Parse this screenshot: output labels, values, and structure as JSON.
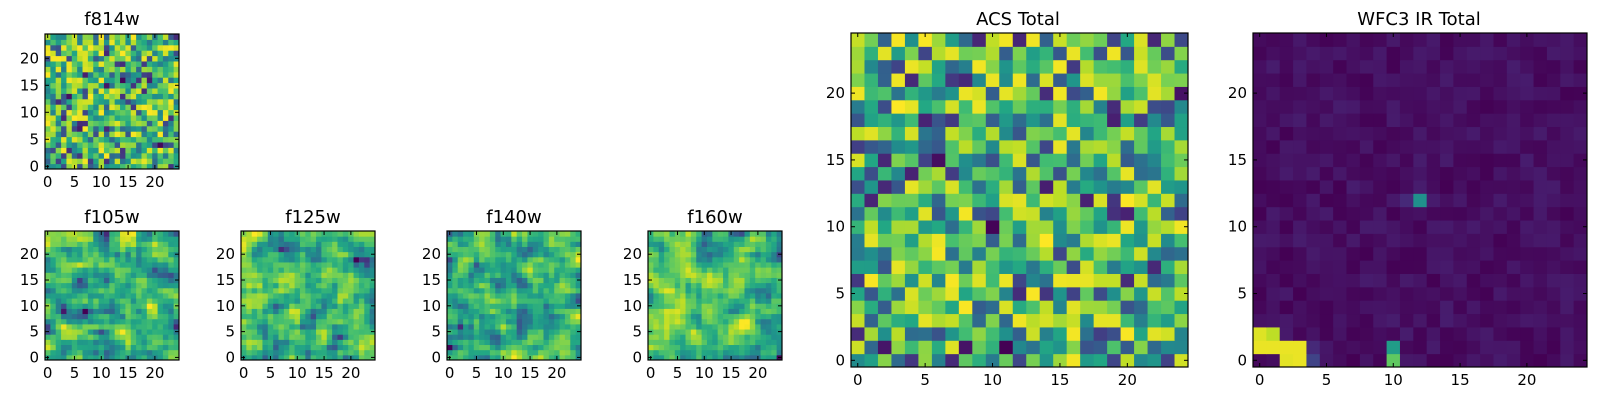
{
  "chart_data": [
    {
      "type": "heatmap",
      "title": "f814w",
      "x_ticks": [
        0,
        5,
        10,
        15,
        20
      ],
      "y_ticks": [
        0,
        5,
        10,
        15,
        20
      ],
      "xlim": [
        -0.5,
        24.5
      ],
      "ylim": [
        -0.5,
        24.5
      ],
      "grid_size": [
        25,
        25
      ],
      "pattern": "pixel noise",
      "colormap": "viridis",
      "value_range": [
        0,
        1
      ],
      "seed": 11,
      "blocky": false,
      "bright": 0.65
    },
    {
      "type": "heatmap",
      "title": "f105w",
      "x_ticks": [
        0,
        5,
        10,
        15,
        20
      ],
      "y_ticks": [
        0,
        5,
        10,
        15,
        20
      ],
      "xlim": [
        -0.5,
        24.5
      ],
      "ylim": [
        -0.5,
        24.5
      ],
      "grid_size": [
        25,
        25
      ],
      "pattern": "smooth noise",
      "colormap": "viridis",
      "value_range": [
        0,
        1
      ],
      "seed": 23,
      "blocky": false,
      "bright": 0.7
    },
    {
      "type": "heatmap",
      "title": "f125w",
      "x_ticks": [
        0,
        5,
        10,
        15,
        20
      ],
      "y_ticks": [
        0,
        5,
        10,
        15,
        20
      ],
      "xlim": [
        -0.5,
        24.5
      ],
      "ylim": [
        -0.5,
        24.5
      ],
      "grid_size": [
        25,
        25
      ],
      "pattern": "smooth noise",
      "colormap": "viridis",
      "value_range": [
        0,
        1
      ],
      "seed": 37,
      "blocky": false,
      "bright": 0.72
    },
    {
      "type": "heatmap",
      "title": "f140w",
      "x_ticks": [
        0,
        5,
        10,
        15,
        20
      ],
      "y_ticks": [
        0,
        5,
        10,
        15,
        20
      ],
      "xlim": [
        -0.5,
        24.5
      ],
      "ylim": [
        -0.5,
        24.5
      ],
      "grid_size": [
        25,
        25
      ],
      "pattern": "smooth noise",
      "colormap": "viridis",
      "value_range": [
        0,
        1
      ],
      "seed": 41,
      "blocky": false,
      "bright": 0.72
    },
    {
      "type": "heatmap",
      "title": "f160w",
      "x_ticks": [
        0,
        5,
        10,
        15,
        20
      ],
      "y_ticks": [
        0,
        5,
        10,
        15,
        20
      ],
      "xlim": [
        -0.5,
        24.5
      ],
      "ylim": [
        -0.5,
        24.5
      ],
      "grid_size": [
        25,
        25
      ],
      "pattern": "smooth noise",
      "colormap": "viridis",
      "value_range": [
        0,
        1
      ],
      "seed": 53,
      "blocky": false,
      "bright": 0.72
    },
    {
      "type": "heatmap",
      "title": "ACS Total",
      "x_ticks": [
        0,
        5,
        10,
        15,
        20
      ],
      "y_ticks": [
        0,
        5,
        10,
        15,
        20
      ],
      "xlim": [
        -0.5,
        24.5
      ],
      "ylim": [
        -0.5,
        24.5
      ],
      "grid_size": [
        25,
        25
      ],
      "pattern": "pixel noise",
      "colormap": "viridis",
      "value_range": [
        0,
        1
      ],
      "seed": 67,
      "blocky": false,
      "bright": 0.68
    },
    {
      "type": "heatmap",
      "title": "WFC3 IR Total",
      "x_ticks": [
        0,
        5,
        10,
        15,
        20
      ],
      "y_ticks": [
        0,
        5,
        10,
        15,
        20
      ],
      "xlim": [
        -0.5,
        24.5
      ],
      "ylim": [
        -0.5,
        24.5
      ],
      "grid_size": [
        25,
        25
      ],
      "pattern": "mostly dark with bright cells",
      "colormap": "viridis",
      "value_range": [
        0,
        1
      ],
      "seed": 79,
      "blocky": false,
      "bright": 0.05,
      "background_range": [
        0.0,
        0.08
      ],
      "highlights": [
        {
          "x": 0,
          "y": 2,
          "value": 0.95
        },
        {
          "x": 1,
          "y": 2,
          "value": 0.9
        },
        {
          "x": 0,
          "y": 1,
          "value": 0.97
        },
        {
          "x": 1,
          "y": 1,
          "value": 0.97
        },
        {
          "x": 2,
          "y": 1,
          "value": 0.97
        },
        {
          "x": 3,
          "y": 1,
          "value": 0.97
        },
        {
          "x": 3,
          "y": 0,
          "value": 0.97
        },
        {
          "x": 2,
          "y": 0,
          "value": 0.96
        },
        {
          "x": 4,
          "y": 0,
          "value": 0.2
        },
        {
          "x": 4,
          "y": 1,
          "value": 0.12
        },
        {
          "x": 10,
          "y": 1,
          "value": 0.55
        },
        {
          "x": 10,
          "y": 0,
          "value": 0.75
        },
        {
          "x": 12,
          "y": 12,
          "value": 0.5
        },
        {
          "x": 11,
          "y": 12,
          "value": 0.12
        }
      ]
    }
  ]
}
